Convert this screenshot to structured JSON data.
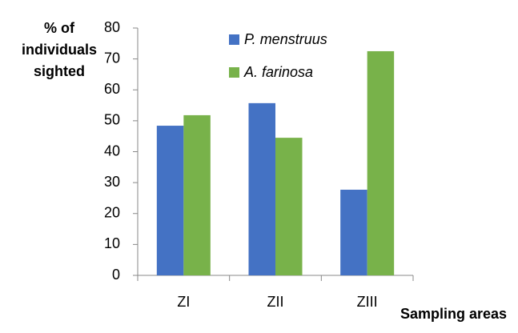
{
  "chart_data": {
    "type": "bar",
    "y_label": "% of individuals sighted",
    "x_label": "Sampling areas",
    "categories": [
      "ZI",
      "ZII",
      "ZIII"
    ],
    "series": [
      {
        "name": "P. menstruus",
        "color": "#4472c4",
        "values": [
          48.4,
          55.7,
          27.7
        ]
      },
      {
        "name": "A. farinosa",
        "color": "#78b24a",
        "values": [
          51.8,
          44.5,
          72.5
        ]
      }
    ],
    "ylim": [
      0,
      80
    ],
    "yticks": [
      0,
      10,
      20,
      30,
      40,
      50,
      60,
      70,
      80
    ],
    "grid": false
  }
}
